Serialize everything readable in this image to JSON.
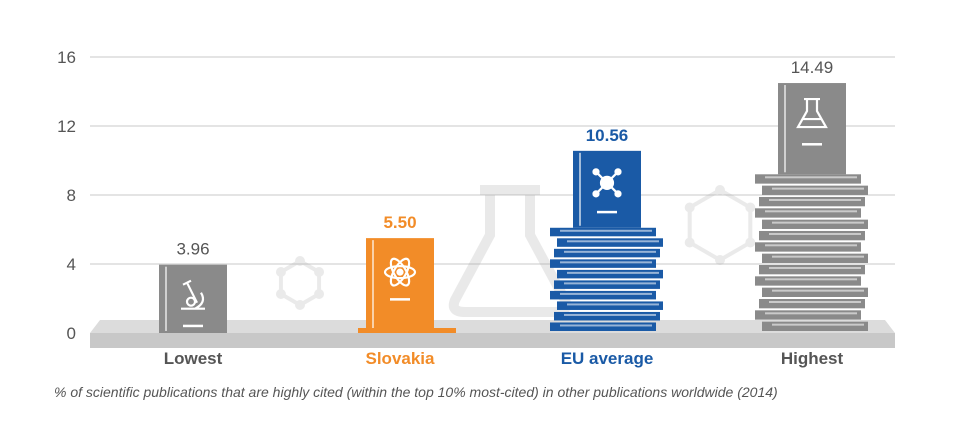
{
  "chart_data": {
    "type": "bar",
    "categories": [
      "Lowest",
      "Slovakia",
      "EU average",
      "Highest"
    ],
    "values": [
      3.96,
      5.5,
      10.56,
      14.49
    ],
    "value_labels": [
      "3.96",
      "5.50",
      "10.56",
      "14.49"
    ],
    "yticks": [
      "0",
      "4",
      "8",
      "12",
      "16"
    ],
    "ylim": [
      0,
      16
    ],
    "grid": true,
    "colors": [
      "#8a8a8a",
      "#f28c28",
      "#1a5aa6",
      "#8a8a8a"
    ],
    "label_colors": [
      "#555555",
      "#f28c28",
      "#1a5aa6",
      "#555555"
    ],
    "icons": [
      "microscope-icon",
      "atom-icon",
      "molecule-icon",
      "flask-icon"
    ],
    "caption": "% of scientific publications that are highly cited (within the top 10% most-cited) in other publications worldwide (2014)"
  }
}
